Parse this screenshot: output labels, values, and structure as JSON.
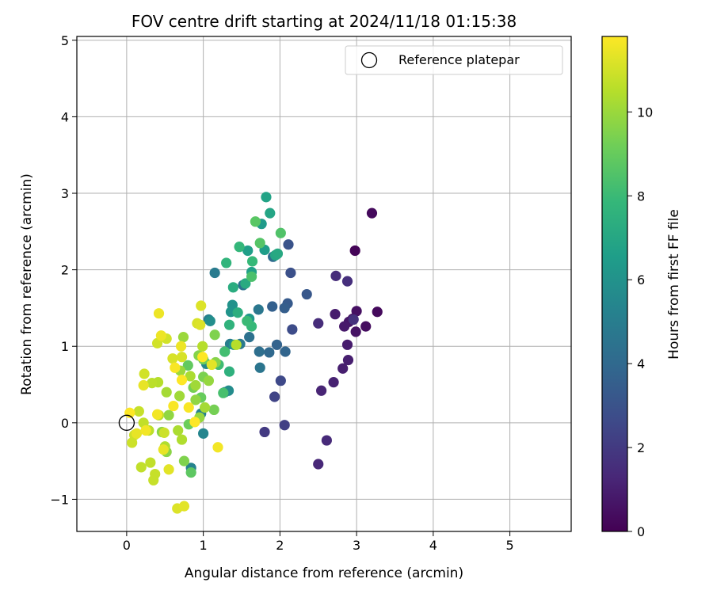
{
  "chart_data": {
    "type": "scatter",
    "title": "FOV centre drift starting at 2024/11/18 01:15:38",
    "xlabel": "Angular distance from reference (arcmin)",
    "ylabel": "Rotation from reference (arcmin)",
    "xlim": [
      -0.65,
      5.8
    ],
    "ylim": [
      -1.42,
      5.05
    ],
    "xticks": [
      0,
      1,
      2,
      3,
      4,
      5
    ],
    "yticks": [
      -1,
      0,
      1,
      2,
      3,
      4,
      5
    ],
    "grid": true,
    "legend": {
      "placement": "top-right",
      "entries": [
        "Reference platepar"
      ]
    },
    "colorbar": {
      "label": "Hours from first FF file",
      "range": [
        0,
        11.8
      ],
      "ticks": [
        0,
        2,
        4,
        6,
        8,
        10
      ],
      "colormap": "viridis"
    },
    "reference": {
      "x": 0,
      "y": 0,
      "label": "Reference platepar"
    },
    "points": [
      [
        2.98,
        2.25,
        0.1
      ],
      [
        3.2,
        2.74,
        0.3
      ],
      [
        3.27,
        1.45,
        0.3
      ],
      [
        3.12,
        1.26,
        0.4
      ],
      [
        3.0,
        1.46,
        0.5
      ],
      [
        2.95,
        1.36,
        0.5
      ],
      [
        2.99,
        1.19,
        0.6
      ],
      [
        2.9,
        1.32,
        0.7
      ],
      [
        2.84,
        1.26,
        0.8
      ],
      [
        2.72,
        1.42,
        0.9
      ],
      [
        2.88,
        1.02,
        0.9
      ],
      [
        2.89,
        0.82,
        1.0
      ],
      [
        2.82,
        0.71,
        1.0
      ],
      [
        2.7,
        0.53,
        1.1
      ],
      [
        2.54,
        0.42,
        1.2
      ],
      [
        2.5,
        -0.54,
        1.3
      ],
      [
        2.61,
        -0.23,
        1.4
      ],
      [
        2.5,
        1.3,
        1.5
      ],
      [
        2.73,
        1.92,
        1.5
      ],
      [
        2.88,
        1.85,
        1.6
      ],
      [
        2.96,
        1.35,
        1.7
      ],
      [
        1.8,
        -0.12,
        2.0
      ],
      [
        2.06,
        -0.03,
        2.2
      ],
      [
        1.93,
        0.34,
        2.4
      ],
      [
        2.01,
        0.55,
        2.6
      ],
      [
        2.16,
        1.22,
        2.7
      ],
      [
        2.14,
        1.96,
        2.9
      ],
      [
        2.11,
        2.33,
        3.0
      ],
      [
        2.35,
        1.68,
        3.2
      ],
      [
        2.1,
        1.56,
        3.3
      ],
      [
        2.06,
        1.5,
        3.5
      ],
      [
        1.9,
        1.52,
        3.6
      ],
      [
        1.96,
        1.02,
        3.7
      ],
      [
        2.07,
        0.93,
        3.8
      ],
      [
        1.86,
        0.92,
        4.0
      ],
      [
        1.91,
        2.17,
        4.1
      ],
      [
        1.73,
        0.93,
        4.3
      ],
      [
        1.6,
        1.12,
        4.4
      ],
      [
        1.52,
        1.8,
        4.5
      ],
      [
        1.74,
        0.72,
        4.6
      ],
      [
        1.72,
        1.48,
        4.7
      ],
      [
        1.48,
        1.03,
        4.8
      ],
      [
        1.15,
        1.96,
        4.9
      ],
      [
        1.35,
        1.03,
        5.0
      ],
      [
        1.07,
        1.35,
        5.1
      ],
      [
        0.97,
        0.12,
        5.2
      ],
      [
        0.84,
        -0.59,
        5.3
      ],
      [
        1.0,
        -0.14,
        5.4
      ],
      [
        1.04,
        0.77,
        5.5
      ],
      [
        1.28,
        0.4,
        5.6
      ],
      [
        1.33,
        0.42,
        5.7
      ],
      [
        1.09,
        1.33,
        5.8
      ],
      [
        1.28,
        0.93,
        5.9
      ],
      [
        1.38,
        1.54,
        6.0
      ],
      [
        1.36,
        1.45,
        6.1
      ],
      [
        1.4,
        1.02,
        6.2
      ],
      [
        1.6,
        1.36,
        6.3
      ],
      [
        1.76,
        2.6,
        6.4
      ],
      [
        1.8,
        2.26,
        6.5
      ],
      [
        1.58,
        2.25,
        6.6
      ],
      [
        1.63,
        1.97,
        6.7
      ],
      [
        1.82,
        2.95,
        6.8
      ],
      [
        1.87,
        2.74,
        6.9
      ],
      [
        1.94,
        2.19,
        7.0
      ],
      [
        1.97,
        2.21,
        7.1
      ],
      [
        1.55,
        1.82,
        7.2
      ],
      [
        1.39,
        1.77,
        7.3
      ],
      [
        1.45,
        1.44,
        7.4
      ],
      [
        1.34,
        0.67,
        7.5
      ],
      [
        1.34,
        1.28,
        7.6
      ],
      [
        1.3,
        2.09,
        7.7
      ],
      [
        1.47,
        2.3,
        7.8
      ],
      [
        1.64,
        2.11,
        7.9
      ],
      [
        1.63,
        1.26,
        7.9
      ],
      [
        1.57,
        1.33,
        8.0
      ],
      [
        1.2,
        0.76,
        8.1
      ],
      [
        1.28,
        0.93,
        8.2
      ],
      [
        1.26,
        0.39,
        8.3
      ],
      [
        1.63,
        1.91,
        8.4
      ],
      [
        2.01,
        2.48,
        8.5
      ],
      [
        1.74,
        2.35,
        8.6
      ],
      [
        1.68,
        2.63,
        8.7
      ],
      [
        0.84,
        -0.65,
        8.8
      ],
      [
        0.8,
        0.75,
        8.9
      ],
      [
        0.97,
        0.33,
        9.0
      ],
      [
        0.81,
        -0.02,
        9.1
      ],
      [
        1.0,
        0.83,
        9.2
      ],
      [
        1.14,
        0.17,
        9.3
      ],
      [
        0.87,
        0.46,
        9.3
      ],
      [
        1.0,
        0.6,
        9.4
      ],
      [
        0.75,
        -0.5,
        9.5
      ],
      [
        1.15,
        1.15,
        9.5
      ],
      [
        0.94,
        0.88,
        9.6
      ],
      [
        1.16,
        0.79,
        9.6
      ],
      [
        0.52,
        -0.38,
        9.7
      ],
      [
        0.46,
        -0.12,
        9.7
      ],
      [
        0.55,
        0.1,
        9.8
      ],
      [
        0.9,
        0.3,
        9.8
      ],
      [
        0.95,
        0.07,
        9.9
      ],
      [
        1.07,
        0.55,
        9.9
      ],
      [
        0.7,
        0.68,
        10.0
      ],
      [
        0.74,
        1.12,
        10.0
      ],
      [
        0.9,
        0.49,
        10.1
      ],
      [
        0.69,
        0.35,
        10.1
      ],
      [
        0.52,
        0.4,
        10.2
      ],
      [
        1.02,
        0.2,
        10.2
      ],
      [
        0.83,
        0.61,
        10.3
      ],
      [
        0.67,
        -0.1,
        10.3
      ],
      [
        0.5,
        -0.31,
        10.4
      ],
      [
        0.72,
        -0.22,
        10.4
      ],
      [
        1.43,
        1.02,
        10.5
      ],
      [
        0.99,
        1.0,
        10.5
      ],
      [
        0.41,
        0.53,
        10.5
      ],
      [
        0.33,
        0.52,
        10.6
      ],
      [
        0.42,
        0.1,
        10.6
      ],
      [
        0.29,
        -0.1,
        10.6
      ],
      [
        0.22,
        0.0,
        10.7
      ],
      [
        0.19,
        -0.58,
        10.7
      ],
      [
        0.31,
        -0.52,
        10.7
      ],
      [
        0.37,
        -0.67,
        10.8
      ],
      [
        0.35,
        -0.75,
        10.8
      ],
      [
        0.16,
        0.15,
        10.8
      ],
      [
        0.1,
        -0.16,
        10.9
      ],
      [
        0.07,
        -0.26,
        10.9
      ],
      [
        0.49,
        -0.13,
        10.9
      ],
      [
        0.23,
        0.64,
        11.0
      ],
      [
        0.4,
        1.04,
        11.0
      ],
      [
        0.52,
        1.1,
        11.0
      ],
      [
        0.6,
        0.84,
        11.1
      ],
      [
        0.72,
        0.86,
        11.1
      ],
      [
        0.92,
        1.3,
        11.1
      ],
      [
        0.97,
        1.53,
        11.2
      ],
      [
        0.96,
        1.28,
        11.2
      ],
      [
        0.66,
        -1.12,
        11.2
      ],
      [
        0.75,
        -1.09,
        11.3
      ],
      [
        1.11,
        0.76,
        11.3
      ],
      [
        0.55,
        -0.61,
        11.3
      ],
      [
        0.48,
        -0.35,
        11.4
      ],
      [
        0.13,
        -0.14,
        11.4
      ],
      [
        0.22,
        0.49,
        11.4
      ],
      [
        0.42,
        1.43,
        11.5
      ],
      [
        0.45,
        1.14,
        11.5
      ],
      [
        0.71,
        1.0,
        11.5
      ],
      [
        1.19,
        -0.32,
        11.6
      ],
      [
        0.25,
        -0.1,
        11.6
      ],
      [
        0.4,
        0.11,
        11.6
      ],
      [
        0.61,
        0.22,
        11.7
      ],
      [
        0.81,
        0.2,
        11.7
      ],
      [
        0.63,
        0.72,
        11.7
      ],
      [
        0.99,
        0.86,
        11.8
      ],
      [
        0.04,
        0.13,
        11.8
      ],
      [
        0.72,
        0.56,
        11.8
      ],
      [
        0.89,
        0.01,
        11.8
      ]
    ]
  }
}
